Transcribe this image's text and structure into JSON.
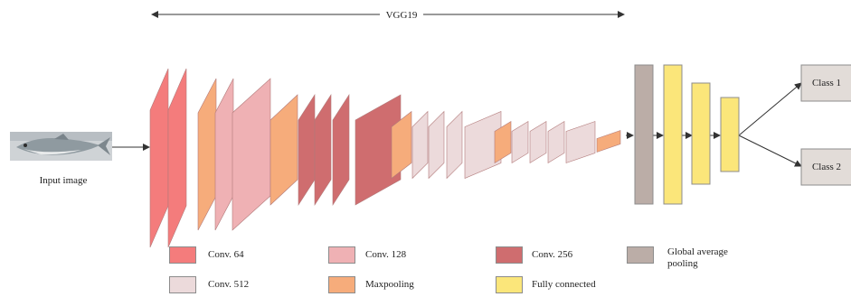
{
  "title": "VGG19",
  "input_label": "Input image",
  "outputs": [
    "Class 1",
    "Class 2"
  ],
  "colors": {
    "conv64": "#f47c7c",
    "conv128": "#efb1b4",
    "conv256": "#cf6d6f",
    "conv512": "#ecdadb",
    "maxpool": "#f6ac7b",
    "fc": "#fbe67a",
    "gap": "#bbada7",
    "class_box": "#e2dcd8",
    "fish_body": "#8f9aa0"
  },
  "legend": [
    {
      "key": "conv64",
      "label": "Conv. 64"
    },
    {
      "key": "conv128",
      "label": "Conv. 128"
    },
    {
      "key": "conv256",
      "label": "Conv. 256"
    },
    {
      "key": "gap",
      "label": "Global average pooling"
    },
    {
      "key": "conv512",
      "label": "Conv. 512"
    },
    {
      "key": "maxpool",
      "label": "Maxpooling"
    },
    {
      "key": "fc",
      "label": "Fully connected"
    }
  ],
  "network_layers": [
    "conv64",
    "conv64",
    "maxpool",
    "conv128",
    "conv128",
    "maxpool",
    "conv256",
    "conv256",
    "conv256",
    "conv256",
    "maxpool",
    "conv512",
    "conv512",
    "conv512",
    "conv512",
    "maxpool",
    "conv512",
    "conv512",
    "conv512",
    "conv512",
    "maxpool"
  ],
  "head_layers": [
    "gap",
    "fc",
    "fc",
    "fc"
  ]
}
